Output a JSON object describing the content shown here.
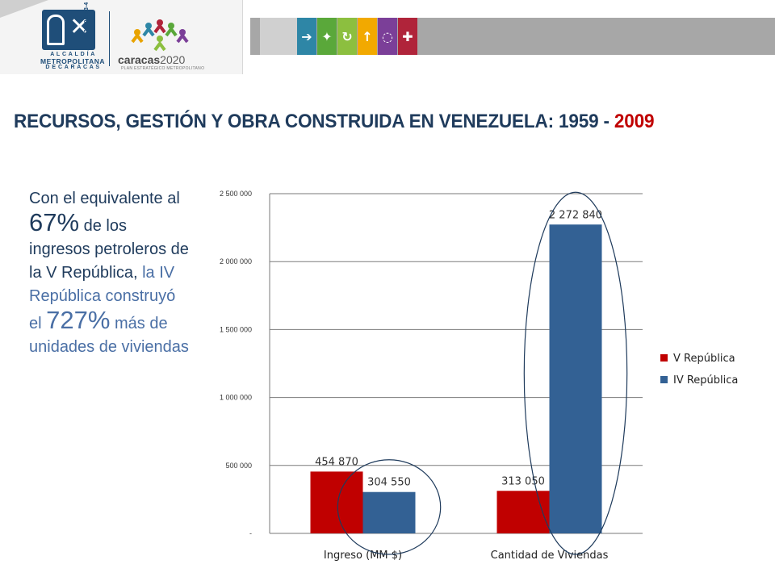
{
  "header": {
    "logo_code": "G-20000153-4",
    "alcaldia_line1": "A L C A L D Í A",
    "alcaldia_line2": "METROPOLITANA",
    "alcaldia_line3": "D E  C A R A C A S",
    "caracas_word": "caracas",
    "caracas_year": "2020",
    "caracas_subtitle": "PLAN ESTRATÉGICO METROPOLITANO",
    "icons": [
      {
        "name": "arrow-right-icon",
        "glyph": "➔",
        "color": "#2e86a6"
      },
      {
        "name": "person-icon",
        "glyph": "✦",
        "color": "#5aa83a"
      },
      {
        "name": "cycle-icon",
        "glyph": "↻",
        "color": "#8cbf3f"
      },
      {
        "name": "arrow-up-icon",
        "glyph": "↑",
        "color": "#f2a900"
      },
      {
        "name": "dots-circle-icon",
        "glyph": "◌",
        "color": "#7b3f98"
      },
      {
        "name": "expand-icon",
        "glyph": "✚",
        "color": "#b0243a"
      }
    ]
  },
  "title": {
    "main": "RECURSOS, GESTIÓN Y OBRA CONSTRUIDA EN VENEZUELA: 1959 - ",
    "highlight": "2009"
  },
  "side_text": {
    "p1": "Con el equivalente al ",
    "big1": "67%",
    "p2": " de los ingresos petroleros de la V República, ",
    "p3": "la IV República construyó  el ",
    "big2": "727%",
    "p4": " más de unidades de viviendas"
  },
  "chart_data": {
    "type": "bar",
    "categories": [
      "Ingreso (MM $)",
      "Cantidad de Viviendas"
    ],
    "series": [
      {
        "name": "V República",
        "values": [
          454870,
          313050
        ],
        "color": "#c00000",
        "labels": [
          "454 870",
          "313 050"
        ]
      },
      {
        "name": "IV República",
        "values": [
          304550,
          2272840
        ],
        "color": "#336194",
        "labels": [
          "304 550",
          "2 272 840"
        ]
      }
    ],
    "ylim": [
      0,
      2500000
    ],
    "yticks": [
      0,
      500000,
      1000000,
      1500000,
      2000000,
      2500000
    ],
    "ytick_labels": [
      "-",
      "500 000",
      "1 000 000",
      "1 500 000",
      "2 000 000",
      "2 500 000"
    ],
    "grid": true,
    "legend": "right",
    "annotations": [
      "ellipse around IV República bars"
    ],
    "colors": {
      "v_republica": "#c00000",
      "iv_republica": "#336194",
      "grid": "#7a7a7a",
      "ellipse": "#1f3b5c"
    }
  }
}
